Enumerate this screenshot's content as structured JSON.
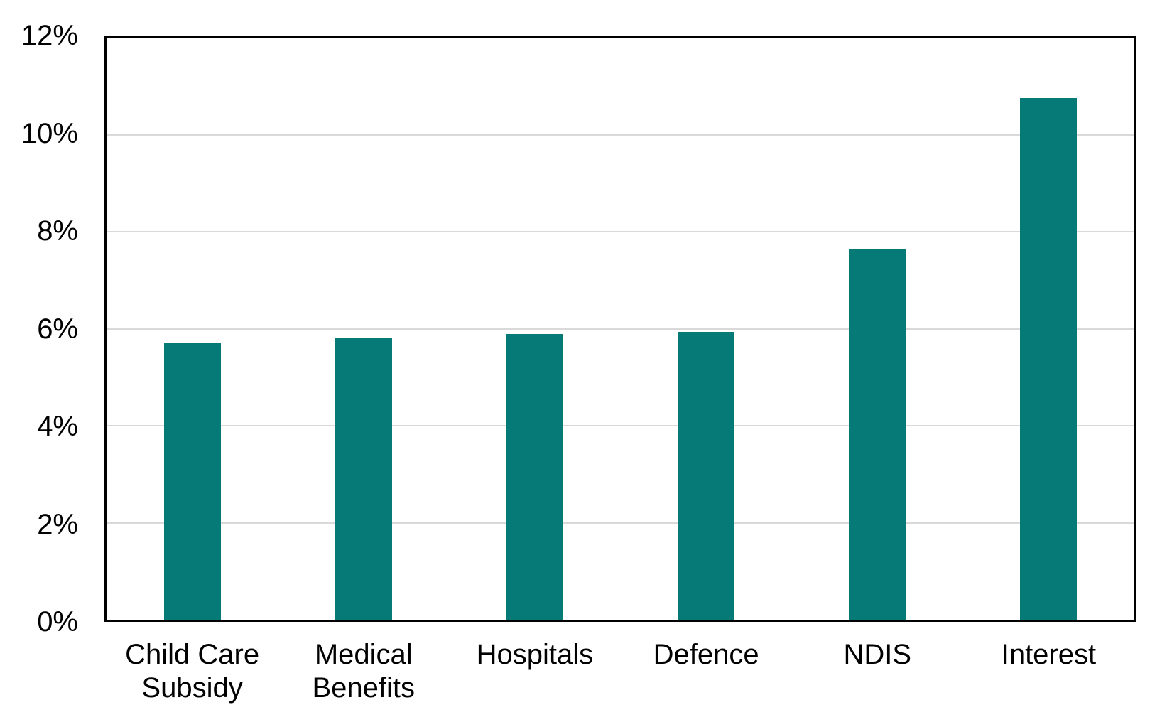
{
  "chart_data": {
    "type": "bar",
    "title": "",
    "categories": [
      "Child Care\nSubsidy",
      "Medical\nBenefits",
      "Hospitals",
      "Defence",
      "NDIS",
      "Interest"
    ],
    "values": [
      5.72,
      5.8,
      5.89,
      5.93,
      7.64,
      10.75
    ],
    "ylim": [
      0,
      12
    ],
    "y_tick_step": 2,
    "y_tick_labels": [
      "0%",
      "2%",
      "4%",
      "6%",
      "8%",
      "10%",
      "12%"
    ],
    "grid": "horizontal-only",
    "legend": "none",
    "colors": {
      "bar": "#057a77",
      "gridline": "#d9d9d9",
      "axis_border": "#000000",
      "text": "#000000",
      "background": "#ffffff"
    }
  }
}
